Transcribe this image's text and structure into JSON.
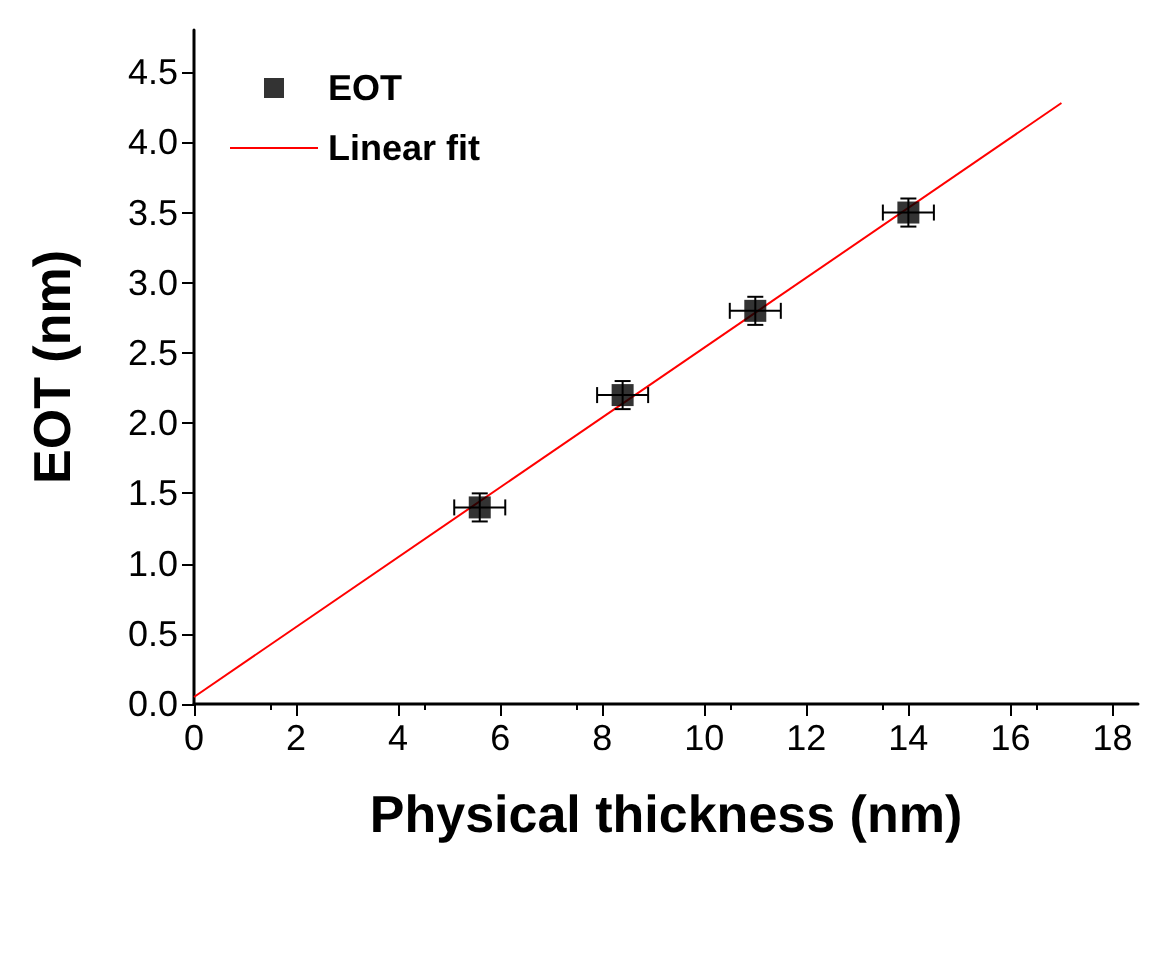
{
  "chart_data": {
    "type": "scatter",
    "xlabel": "Physical thickness (nm)",
    "ylabel": "EOT (nm)",
    "xlim": [
      0,
      18.5
    ],
    "xticks": [
      0,
      2,
      4,
      6,
      8,
      10,
      12,
      14,
      16,
      18
    ],
    "ylim": [
      0,
      4.8
    ],
    "yticks": [
      {
        "value": 0,
        "label": "0.0"
      },
      {
        "value": 0.5,
        "label": "0.5"
      },
      {
        "value": 1,
        "label": "1.0"
      },
      {
        "value": 1.5,
        "label": "1.5"
      },
      {
        "value": 2,
        "label": "2.0"
      },
      {
        "value": 2.5,
        "label": "2.5"
      },
      {
        "value": 3,
        "label": "3.0"
      },
      {
        "value": 3.5,
        "label": "3.5"
      },
      {
        "value": 4,
        "label": "4.0"
      },
      {
        "value": 4.5,
        "label": "4.5"
      }
    ],
    "legend": "top left",
    "grid": false,
    "series": [
      {
        "name": "EOT",
        "marker": "square",
        "color": "#000000",
        "x": [
          5.6,
          8.4,
          11,
          14
        ],
        "values": [
          1.4,
          2.2,
          2.8,
          3.5
        ],
        "errors": [
          0.1,
          0.1,
          0.1,
          0.1
        ],
        "xerrors": [
          0.5,
          0.5,
          0.5,
          0.5
        ]
      },
      {
        "name": "Linear fit",
        "type": "line",
        "color": "#ff0000",
        "x": [
          0,
          17
        ],
        "values": [
          0.05,
          4.28
        ]
      }
    ]
  }
}
